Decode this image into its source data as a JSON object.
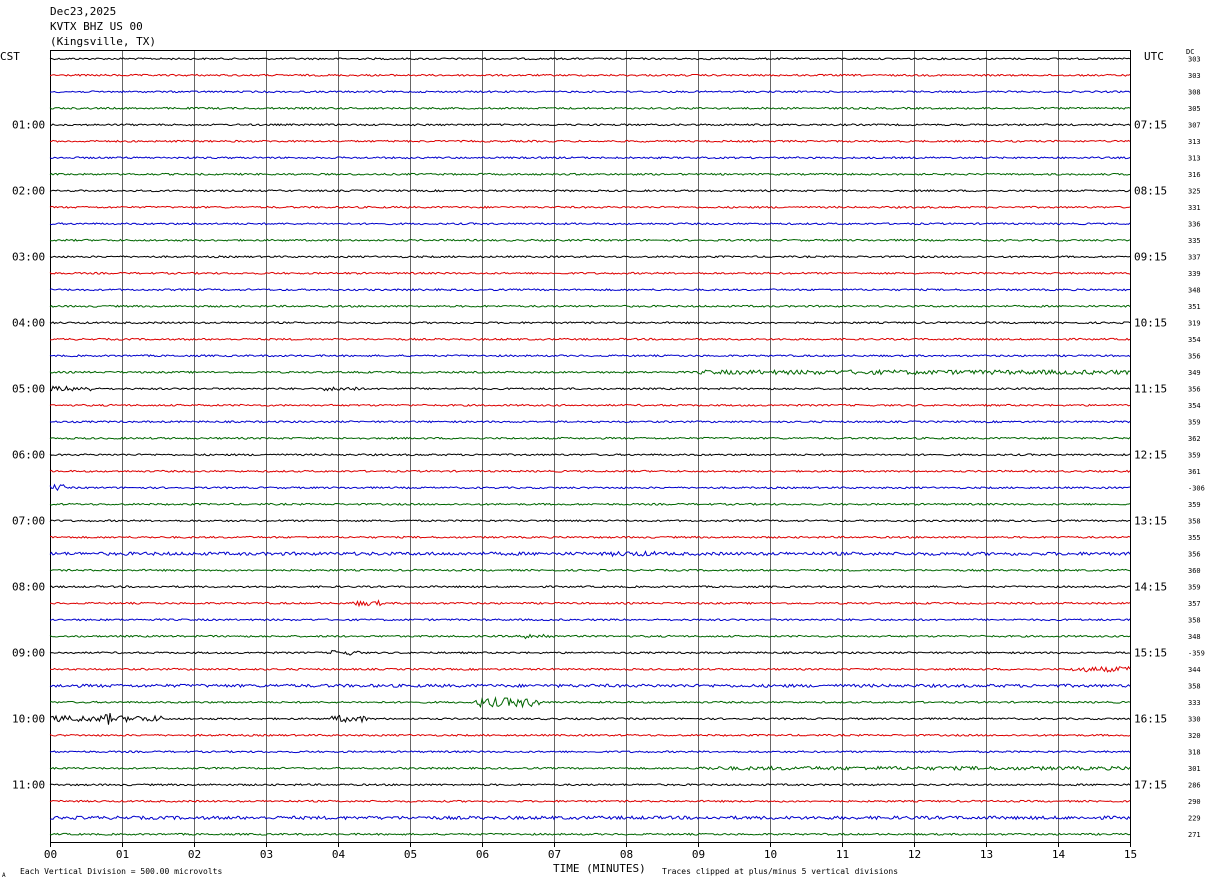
{
  "header": {
    "date": "Dec23,2025",
    "station": "KVTX BHZ US 00",
    "location": "(Kingsville, TX)"
  },
  "left_zone": "CST",
  "right_zone": "UTC",
  "dc_label": "DC",
  "footer": {
    "scale_note": "Each Vertical Division =  500.00 microvolts",
    "clip_note": "Traces clipped at plus/minus 5 vertical divisions",
    "corner_mark": "A"
  },
  "chart_data": {
    "type": "line",
    "title": "",
    "xlabel": "TIME (MINUTES)",
    "xlim": [
      0,
      15
    ],
    "x_ticks": [
      "00",
      "01",
      "02",
      "03",
      "04",
      "05",
      "06",
      "07",
      "08",
      "09",
      "10",
      "11",
      "12",
      "13",
      "14",
      "15"
    ],
    "row_count": 48,
    "row_minutes": 15,
    "trace_colors": [
      "#000000",
      "#dd0000",
      "#0000cc",
      "#006600"
    ],
    "left_hour_labels": [
      "01:00",
      "02:00",
      "03:00",
      "04:00",
      "05:00",
      "06:00",
      "07:00",
      "08:00",
      "09:00",
      "10:00",
      "11:00"
    ],
    "right_hour_labels": [
      "07:15",
      "08:15",
      "09:15",
      "10:15",
      "11:15",
      "12:15",
      "13:15",
      "14:15",
      "15:15",
      "16:15",
      "17:15"
    ],
    "dc_offsets": [
      "303",
      "303",
      "308",
      "305",
      "307",
      "313",
      "313",
      "316",
      "325",
      "331",
      "336",
      "335",
      "337",
      "339",
      "348",
      "351",
      "319",
      "354",
      "356",
      "349",
      "356",
      "354",
      "359",
      "362",
      "359",
      "361",
      "-306",
      "359",
      "358",
      "355",
      "356",
      "360",
      "359",
      "357",
      "358",
      "348",
      "-359",
      "344",
      "358",
      "333",
      "330",
      "320",
      "318",
      "301",
      "286",
      "290",
      "229",
      "271"
    ],
    "noisy_segments": [
      {
        "row": 19,
        "start_min": 9.0,
        "end_min": 15.0,
        "amp": 2.2
      },
      {
        "row": 20,
        "start_min": 0.0,
        "end_min": 0.6,
        "amp": 2.5
      },
      {
        "row": 20,
        "start_min": 3.8,
        "end_min": 4.3,
        "amp": 2.0
      },
      {
        "row": 26,
        "start_min": 0.0,
        "end_min": 0.2,
        "amp": 3.0
      },
      {
        "row": 30,
        "start_min": 0.0,
        "end_min": 15.0,
        "amp": 1.6
      },
      {
        "row": 30,
        "start_min": 7.8,
        "end_min": 8.4,
        "amp": 2.5
      },
      {
        "row": 33,
        "start_min": 4.2,
        "end_min": 4.6,
        "amp": 2.6
      },
      {
        "row": 35,
        "start_min": 6.6,
        "end_min": 7.0,
        "amp": 2.4
      },
      {
        "row": 36,
        "start_min": 3.9,
        "end_min": 4.3,
        "amp": 2.4
      },
      {
        "row": 37,
        "start_min": 14.2,
        "end_min": 15.0,
        "amp": 2.6
      },
      {
        "row": 38,
        "start_min": 0.0,
        "end_min": 15.0,
        "amp": 1.5
      },
      {
        "row": 39,
        "start_min": 5.9,
        "end_min": 6.8,
        "amp": 4.5
      },
      {
        "row": 40,
        "start_min": 0.0,
        "end_min": 1.6,
        "amp": 3.0
      },
      {
        "row": 40,
        "start_min": 0.75,
        "end_min": 0.85,
        "amp": 6.0
      },
      {
        "row": 40,
        "start_min": 3.9,
        "end_min": 4.4,
        "amp": 3.2
      },
      {
        "row": 43,
        "start_min": 9.0,
        "end_min": 15.0,
        "amp": 1.8
      },
      {
        "row": 46,
        "start_min": 0.0,
        "end_min": 15.0,
        "amp": 1.6
      }
    ]
  }
}
